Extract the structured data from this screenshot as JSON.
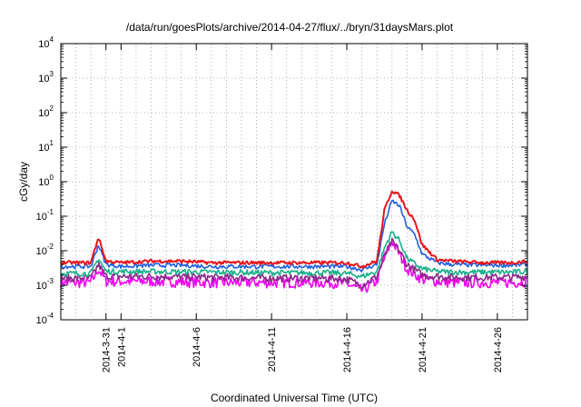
{
  "chart_data": {
    "type": "line",
    "title": "/data/run/goesPlots/archive/2014-04-27/flux/../bryn/31daysMars.plot",
    "xlabel": "Coordinated Universal Time (UTC)",
    "ylabel": "cGy/day",
    "yscale": "log",
    "ylim": [
      0.0001,
      10000
    ],
    "y_ticks": [
      {
        "base": "10",
        "exp": "-4"
      },
      {
        "base": "10",
        "exp": "-3"
      },
      {
        "base": "10",
        "exp": "-2"
      },
      {
        "base": "10",
        "exp": "-1"
      },
      {
        "base": "10",
        "exp": "0"
      },
      {
        "base": "10",
        "exp": "1"
      },
      {
        "base": "10",
        "exp": "2"
      },
      {
        "base": "10",
        "exp": "3"
      },
      {
        "base": "10",
        "exp": "4"
      }
    ],
    "xlim": [
      "2014-03-28",
      "2014-04-28"
    ],
    "x_ticks": [
      "2014-3-31",
      "2014-4-1",
      "2014-4-6",
      "2014-4-11",
      "2014-4-16",
      "2014-4-21",
      "2014-4-26"
    ],
    "grid": true,
    "series": [
      {
        "color": "#e8141b",
        "x": [
          "2014-03-28",
          "2014-03-29",
          "2014-03-30",
          "2014-03-30.5",
          "2014-03-31",
          "2014-04-01",
          "2014-04-03",
          "2014-04-05",
          "2014-04-07",
          "2014-04-09",
          "2014-04-11",
          "2014-04-13",
          "2014-04-15",
          "2014-04-16",
          "2014-04-17",
          "2014-04-18",
          "2014-04-18.5",
          "2014-04-19",
          "2014-04-19.5",
          "2014-04-20",
          "2014-04-20.5",
          "2014-04-21",
          "2014-04-22",
          "2014-04-23",
          "2014-04-25",
          "2014-04-27",
          "2014-04-28"
        ],
        "values": [
          0.0045,
          0.0045,
          0.0045,
          0.025,
          0.005,
          0.0045,
          0.005,
          0.005,
          0.0045,
          0.0045,
          0.0045,
          0.0045,
          0.0045,
          0.0045,
          0.0035,
          0.005,
          0.15,
          0.55,
          0.4,
          0.15,
          0.08,
          0.015,
          0.0055,
          0.005,
          0.0045,
          0.0045,
          0.005
        ]
      },
      {
        "color": "#1f5fe0",
        "x": [
          "2014-03-28",
          "2014-03-29",
          "2014-03-30",
          "2014-03-30.5",
          "2014-03-31",
          "2014-04-01",
          "2014-04-03",
          "2014-04-05",
          "2014-04-07",
          "2014-04-09",
          "2014-04-11",
          "2014-04-13",
          "2014-04-15",
          "2014-04-16",
          "2014-04-17",
          "2014-04-18",
          "2014-04-18.5",
          "2014-04-19",
          "2014-04-19.5",
          "2014-04-20",
          "2014-04-20.5",
          "2014-04-21",
          "2014-04-22",
          "2014-04-23",
          "2014-04-25",
          "2014-04-27",
          "2014-04-28"
        ],
        "values": [
          0.0035,
          0.0035,
          0.0035,
          0.015,
          0.004,
          0.0035,
          0.0038,
          0.0038,
          0.0035,
          0.0035,
          0.0035,
          0.0035,
          0.0035,
          0.0035,
          0.0028,
          0.004,
          0.06,
          0.28,
          0.2,
          0.05,
          0.03,
          0.008,
          0.0045,
          0.004,
          0.0038,
          0.0038,
          0.004
        ]
      },
      {
        "color": "#18b08c",
        "x": [
          "2014-03-28",
          "2014-03-30",
          "2014-03-30.5",
          "2014-03-31",
          "2014-04-03",
          "2014-04-07",
          "2014-04-11",
          "2014-04-15",
          "2014-04-16",
          "2014-04-17",
          "2014-04-18",
          "2014-04-18.5",
          "2014-04-19",
          "2014-04-19.5",
          "2014-04-20",
          "2014-04-21",
          "2014-04-22",
          "2014-04-23",
          "2014-04-25",
          "2014-04-27",
          "2014-04-28"
        ],
        "values": [
          0.0022,
          0.0022,
          0.006,
          0.0025,
          0.0025,
          0.0024,
          0.0023,
          0.0023,
          0.0022,
          0.0018,
          0.0025,
          0.012,
          0.035,
          0.02,
          0.006,
          0.003,
          0.0025,
          0.0024,
          0.0024,
          0.0024,
          0.0025
        ]
      },
      {
        "color": "#8a2a8a",
        "x": [
          "2014-03-28",
          "2014-03-30",
          "2014-03-30.5",
          "2014-03-31",
          "2014-04-03",
          "2014-04-07",
          "2014-04-11",
          "2014-04-15",
          "2014-04-16",
          "2014-04-17",
          "2014-04-18",
          "2014-04-18.5",
          "2014-04-19",
          "2014-04-19.5",
          "2014-04-20",
          "2014-04-21",
          "2014-04-22",
          "2014-04-23",
          "2014-04-25",
          "2014-04-27",
          "2014-04-28"
        ],
        "values": [
          0.0016,
          0.0016,
          0.004,
          0.0018,
          0.0018,
          0.0017,
          0.0016,
          0.0016,
          0.0015,
          0.001,
          0.0018,
          0.007,
          0.018,
          0.01,
          0.004,
          0.002,
          0.0018,
          0.0017,
          0.0017,
          0.0017,
          0.0018
        ]
      },
      {
        "color": "#f000f0",
        "x": [
          "2014-03-28",
          "2014-03-30",
          "2014-03-30.5",
          "2014-03-31",
          "2014-04-03",
          "2014-04-07",
          "2014-04-11",
          "2014-04-15",
          "2014-04-16",
          "2014-04-17",
          "2014-04-18",
          "2014-04-18.5",
          "2014-04-19",
          "2014-04-19.5",
          "2014-04-20",
          "2014-04-21",
          "2014-04-22",
          "2014-04-23",
          "2014-04-25",
          "2014-04-27",
          "2014-04-28"
        ],
        "values": [
          0.0012,
          0.0012,
          0.003,
          0.0013,
          0.0013,
          0.0012,
          0.0012,
          0.0012,
          0.0011,
          0.0007,
          0.0013,
          0.006,
          0.02,
          0.008,
          0.003,
          0.0015,
          0.0013,
          0.0012,
          0.0012,
          0.0012,
          0.0013
        ]
      }
    ]
  }
}
